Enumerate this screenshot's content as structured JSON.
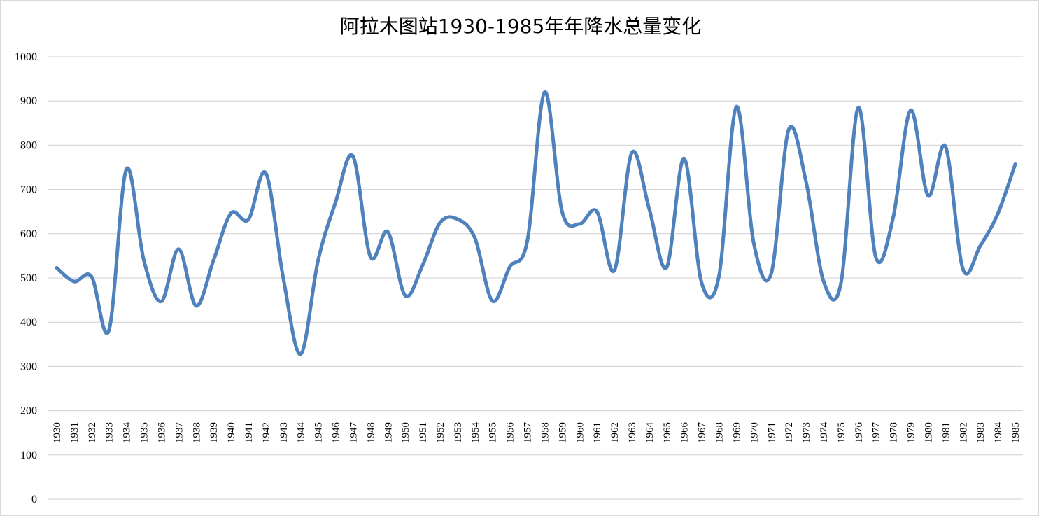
{
  "chart_data": {
    "type": "line",
    "title": "阿拉木图站1930-1985年年降水总量变化",
    "xlabel": "",
    "ylabel": "",
    "ylim": [
      0,
      1000
    ],
    "yticks": [
      0,
      100,
      200,
      300,
      400,
      500,
      600,
      700,
      800,
      900,
      1000
    ],
    "grid": true,
    "legend": "none",
    "smooth": true,
    "line_color": "#4f81bd",
    "x": [
      "1930",
      "1931",
      "1932",
      "1933",
      "1934",
      "1935",
      "1936",
      "1937",
      "1938",
      "1939",
      "1940",
      "1941",
      "1942",
      "1943",
      "1944",
      "1945",
      "1946",
      "1947",
      "1948",
      "1949",
      "1950",
      "1951",
      "1952",
      "1953",
      "1954",
      "1955",
      "1956",
      "1957",
      "1958",
      "1959",
      "1960",
      "1961",
      "1962",
      "1963",
      "1964",
      "1965",
      "1966",
      "1967",
      "1968",
      "1969",
      "1970",
      "1971",
      "1972",
      "1973",
      "1974",
      "1975",
      "1976",
      "1977",
      "1978",
      "1979",
      "1980",
      "1981",
      "1982",
      "1983",
      "1984",
      "1985"
    ],
    "values": [
      523,
      492,
      503,
      382,
      746,
      540,
      447,
      565,
      437,
      540,
      646,
      632,
      737,
      500,
      328,
      540,
      671,
      775,
      548,
      604,
      460,
      529,
      625,
      633,
      590,
      448,
      525,
      583,
      920,
      650,
      622,
      650,
      517,
      783,
      656,
      524,
      770,
      490,
      504,
      887,
      578,
      510,
      835,
      717,
      493,
      488,
      885,
      547,
      637,
      879,
      686,
      797,
      520,
      573,
      645,
      757
    ]
  }
}
